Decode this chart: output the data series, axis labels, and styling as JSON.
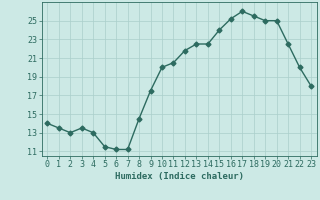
{
  "x": [
    0,
    1,
    2,
    3,
    4,
    5,
    6,
    7,
    8,
    9,
    10,
    11,
    12,
    13,
    14,
    15,
    16,
    17,
    18,
    19,
    20,
    21,
    22,
    23
  ],
  "y": [
    14.0,
    13.5,
    13.0,
    13.5,
    13.0,
    11.5,
    11.2,
    11.2,
    14.5,
    17.5,
    20.0,
    20.5,
    21.8,
    22.5,
    22.5,
    24.0,
    25.2,
    26.0,
    25.5,
    25.0,
    25.0,
    22.5,
    20.0,
    18.0
  ],
  "line_color": "#2d6b60",
  "marker": "D",
  "markersize": 2.5,
  "linewidth": 1.0,
  "bg_color": "#cce9e5",
  "grid_color": "#aacfcb",
  "xlabel": "Humidex (Indice chaleur)",
  "ylim": [
    10.5,
    27
  ],
  "xlim": [
    -0.5,
    23.5
  ],
  "yticks": [
    11,
    13,
    15,
    17,
    19,
    21,
    23,
    25
  ],
  "xtick_labels": [
    "0",
    "1",
    "2",
    "3",
    "4",
    "5",
    "6",
    "7",
    "8",
    "9",
    "10",
    "11",
    "12",
    "13",
    "14",
    "15",
    "16",
    "17",
    "18",
    "19",
    "20",
    "21",
    "22",
    "23"
  ],
  "xlabel_fontsize": 6.5,
  "tick_fontsize": 6.0
}
